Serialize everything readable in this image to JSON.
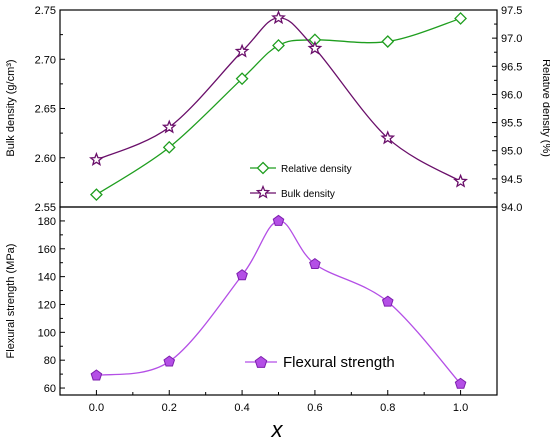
{
  "chart_data": [
    {
      "type": "line",
      "panel": "top",
      "x": [
        0.0,
        0.2,
        0.4,
        0.5,
        0.6,
        0.8,
        1.0
      ],
      "series": [
        {
          "name": "Relative density",
          "axis": "right",
          "marker": "diamond",
          "color": "#1f9e1f",
          "values": [
            94.22,
            95.06,
            96.28,
            96.87,
            96.97,
            96.94,
            97.35
          ]
        },
        {
          "name": "Bulk density",
          "axis": "left",
          "marker": "star",
          "color": "#6a0f6a",
          "values": [
            2.598,
            2.631,
            2.708,
            2.742,
            2.711,
            2.62,
            2.576
          ]
        }
      ],
      "ylabel": "Bulk density (g/cm³)",
      "ylabel_right": "Relative density (%)",
      "ylim": [
        2.55,
        2.75
      ],
      "ylim_right": [
        94.0,
        97.5
      ],
      "yticks": [
        "2.55",
        "2.60",
        "2.65",
        "2.70",
        "2.75"
      ],
      "yticks_right": [
        "94.0",
        "94.5",
        "95.0",
        "95.5",
        "96.0",
        "96.5",
        "97.0",
        "97.5"
      ],
      "legend_position": "bottom-center"
    },
    {
      "type": "line",
      "panel": "bottom",
      "x": [
        0.0,
        0.2,
        0.4,
        0.5,
        0.6,
        0.8,
        1.0
      ],
      "series": [
        {
          "name": "Flexural strength",
          "marker": "pentagon",
          "color": "#b44fe6",
          "values": [
            69,
            79,
            141,
            180,
            149,
            122,
            63
          ]
        }
      ],
      "xlabel": "x",
      "ylabel": "Flexural strength (MPa)",
      "xlim": [
        -0.1,
        1.1
      ],
      "ylim": [
        55,
        190
      ],
      "xticks": [
        "0.0",
        "0.2",
        "0.4",
        "0.6",
        "0.8",
        "1.0"
      ],
      "yticks": [
        "60",
        "80",
        "100",
        "120",
        "140",
        "160",
        "180"
      ],
      "legend_position": "bottom-center"
    }
  ]
}
